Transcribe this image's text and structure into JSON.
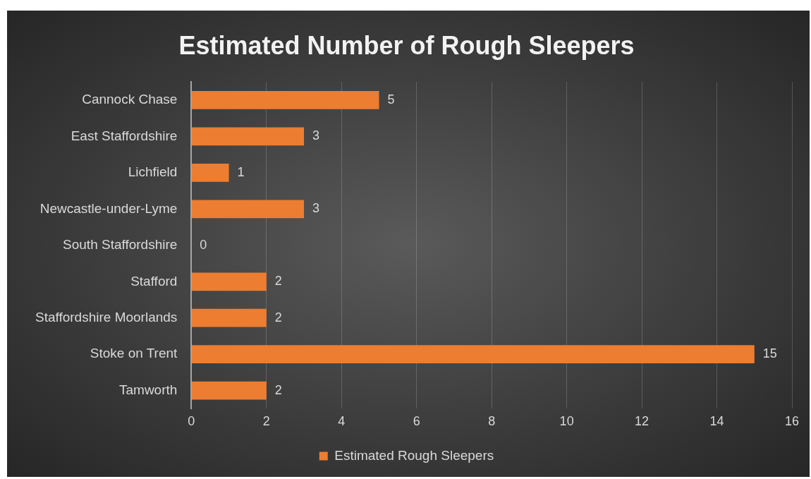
{
  "chart_data": {
    "type": "bar",
    "orientation": "horizontal",
    "title": "Estimated Number of Rough Sleepers",
    "categories": [
      "Cannock Chase",
      "East Staffordshire",
      "Lichfield",
      "Newcastle-under-Lyme",
      "South Staffordshire",
      "Stafford",
      "Staffordshire Moorlands",
      "Stoke on Trent",
      "Tamworth"
    ],
    "series": [
      {
        "name": "Estimated Rough Sleepers",
        "color": "#ed7d31",
        "values": [
          5,
          3,
          1,
          3,
          0,
          2,
          2,
          15,
          2
        ]
      }
    ],
    "xlim": [
      0,
      16
    ],
    "xticks": [
      0,
      2,
      4,
      6,
      8,
      10,
      12,
      14,
      16
    ],
    "grid": "x",
    "legend": "bottom",
    "data_labels": true
  }
}
